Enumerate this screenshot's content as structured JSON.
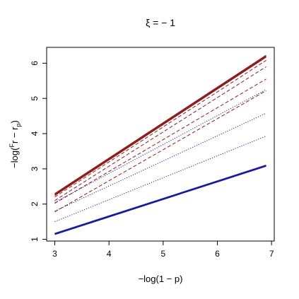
{
  "chart_data": {
    "type": "line",
    "title": "ξ = − 1",
    "xlabel": "−log(1 − p)",
    "ylabel_main": "−log(",
    "ylabel_sup": "F",
    "ylabel_mid": "r",
    "ylabel_minus": " − ",
    "ylabel_sub_r": "r",
    "ylabel_sub_p": "p",
    "ylabel_close": ")",
    "xlim": [
      2.85,
      7.05
    ],
    "ylim": [
      0.95,
      6.45
    ],
    "xticks": [
      3,
      4,
      5,
      6,
      7
    ],
    "yticks": [
      1,
      2,
      3,
      4,
      5,
      6
    ],
    "x_tick_labels": [
      "3",
      "4",
      "5",
      "6",
      "7"
    ],
    "y_tick_labels": [
      "1",
      "2",
      "3",
      "4",
      "5",
      "6"
    ],
    "grid": false,
    "series": [
      {
        "color": "#8b1a1a",
        "style": "solid",
        "x": [
          3,
          6.9
        ],
        "y": [
          2.29,
          6.22
        ]
      },
      {
        "color": "#8b1a1a",
        "style": "solid",
        "x": [
          3,
          6.9
        ],
        "y": [
          2.25,
          6.18
        ]
      },
      {
        "color": "#8b1a1a",
        "style": "dashed",
        "x": [
          3,
          6.9
        ],
        "y": [
          2.2,
          6.08
        ]
      },
      {
        "color": "#8b1a1a",
        "style": "dashed",
        "x": [
          3,
          6.9
        ],
        "y": [
          2.1,
          5.9
        ]
      },
      {
        "color": "#8b1a1a",
        "style": "dashed",
        "x": [
          3,
          6.9
        ],
        "y": [
          2.02,
          5.55
        ]
      },
      {
        "color": "#8b1a1a",
        "style": "dashed",
        "x": [
          3,
          6.9
        ],
        "y": [
          1.78,
          5.22
        ]
      },
      {
        "color": "#1a1a9c",
        "style": "dotted",
        "x": [
          3,
          6.9
        ],
        "y": [
          2.05,
          5.25
        ]
      },
      {
        "color": "#1a1a9c",
        "style": "dotted",
        "x": [
          3,
          6.9
        ],
        "y": [
          1.8,
          4.58
        ]
      },
      {
        "color": "#1a1a9c",
        "style": "dotted",
        "x": [
          3,
          6.9
        ],
        "y": [
          1.5,
          3.93
        ]
      },
      {
        "color": "#1a1a9c",
        "style": "solid",
        "x": [
          3,
          6.9
        ],
        "y": [
          1.16,
          3.1
        ]
      },
      {
        "color": "#1a1a9c",
        "style": "solid",
        "x": [
          3,
          6.9
        ],
        "y": [
          1.14,
          3.08
        ]
      }
    ]
  }
}
